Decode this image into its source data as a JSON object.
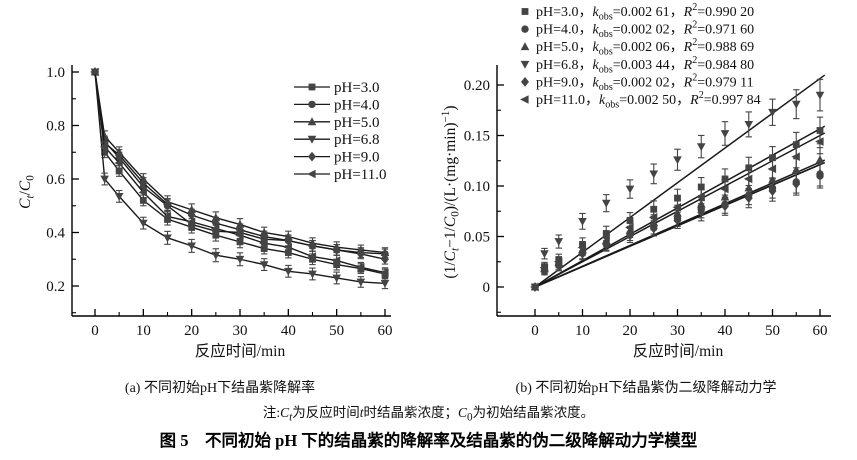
{
  "figure": {
    "caption_a": "(a) 不同初始pH下结晶紫降解率",
    "caption_b": "(b) 不同初始pH下结晶紫伪二级降解动力学",
    "title": "图 5　不同初始 pH 下的结晶紫的降解率及结晶紫的伪二级降解动力学模型",
    "note_rich": [
      {
        "t": "注:"
      },
      {
        "t": "C",
        "i": 1
      },
      {
        "t": "t",
        "i": 1,
        "v": "s"
      },
      {
        "t": "为反应时间"
      },
      {
        "t": "t",
        "i": 1
      },
      {
        "t": "时结晶紫浓度；"
      },
      {
        "t": "C",
        "i": 1
      },
      {
        "t": "0",
        "v": "s"
      },
      {
        "t": "为初始结晶紫浓度。"
      }
    ]
  },
  "colors": {
    "marker": "#444444",
    "line": "#1a1a1a",
    "axis": "#000000",
    "text": "#111111",
    "background": "#ffffff"
  },
  "chart_data": [
    {
      "id": "a",
      "type": "line",
      "title": "(a) 不同初始pH下结晶紫降解率",
      "xlabel": "反应时间/min",
      "ylabel_rich": [
        {
          "t": "C",
          "i": 1
        },
        {
          "t": "t",
          "i": 1,
          "v": "s"
        },
        {
          "t": "/"
        },
        {
          "t": "C",
          "i": 1
        },
        {
          "t": "0",
          "v": "s"
        }
      ],
      "xlim": [
        -5,
        61
      ],
      "ylim": [
        0.09,
        1.03
      ],
      "x_ticks_major": [
        0,
        10,
        20,
        30,
        40,
        50,
        60
      ],
      "x_ticks_minor": [
        5,
        15,
        25,
        35,
        45,
        55
      ],
      "y_ticks_major": [
        [
          0.2,
          "0.2"
        ],
        [
          0.4,
          "0.4"
        ],
        [
          0.6,
          "0.6"
        ],
        [
          0.8,
          "0.8"
        ],
        [
          1.0,
          "1.0"
        ]
      ],
      "y_ticks_minor": [
        0.1,
        0.3,
        0.5,
        0.7,
        0.9
      ],
      "legend_position": "upper right",
      "x": [
        0,
        2,
        5,
        10,
        15,
        20,
        25,
        30,
        35,
        40,
        45,
        50,
        55,
        60
      ],
      "err": [
        0,
        0.02,
        0.02,
        0.02,
        0.022,
        0.022,
        0.022,
        0.022,
        0.02,
        0.02,
        0.02,
        0.02,
        0.018,
        0.018
      ],
      "series": [
        {
          "name": "pH=3.0",
          "marker": "square",
          "err_scale": 1.0,
          "values": [
            1.0,
            0.7,
            0.63,
            0.52,
            0.45,
            0.42,
            0.39,
            0.365,
            0.34,
            0.325,
            0.3,
            0.28,
            0.265,
            0.245
          ]
        },
        {
          "name": "pH=4.0",
          "marker": "circle",
          "err_scale": 1.0,
          "values": [
            1.0,
            0.74,
            0.68,
            0.57,
            0.5,
            0.43,
            0.405,
            0.4,
            0.375,
            0.37,
            0.35,
            0.335,
            0.325,
            0.32
          ]
        },
        {
          "name": "pH=5.0",
          "marker": "triangle-up",
          "err_scale": 1.0,
          "values": [
            1.0,
            0.76,
            0.7,
            0.6,
            0.515,
            0.485,
            0.455,
            0.43,
            0.4,
            0.385,
            0.36,
            0.345,
            0.335,
            0.325
          ]
        },
        {
          "name": "pH=6.8",
          "marker": "triangle-down",
          "err_scale": 1.1,
          "values": [
            1.0,
            0.6,
            0.535,
            0.435,
            0.38,
            0.35,
            0.315,
            0.3,
            0.28,
            0.255,
            0.245,
            0.23,
            0.215,
            0.21
          ]
        },
        {
          "name": "pH=9.0",
          "marker": "diamond",
          "err_scale": 1.0,
          "values": [
            1.0,
            0.735,
            0.69,
            0.585,
            0.505,
            0.465,
            0.435,
            0.41,
            0.385,
            0.37,
            0.35,
            0.335,
            0.32,
            0.3
          ]
        },
        {
          "name": "pH=11.0",
          "marker": "triangle-left",
          "err_scale": 1.0,
          "values": [
            1.0,
            0.72,
            0.66,
            0.55,
            0.46,
            0.44,
            0.415,
            0.39,
            0.36,
            0.345,
            0.31,
            0.295,
            0.27,
            0.25
          ]
        }
      ]
    },
    {
      "id": "b",
      "type": "scatter",
      "title": "(b) 不同初始pH下结晶紫伪二级降解动力学",
      "xlabel": "反应时间/min",
      "ylabel_rich": [
        {
          "t": "(1/"
        },
        {
          "t": "C",
          "i": 1
        },
        {
          "t": "t",
          "i": 1,
          "v": "s"
        },
        {
          "t": "−1/"
        },
        {
          "t": "C",
          "i": 1
        },
        {
          "t": "0",
          "v": "s"
        },
        {
          "t": ")/(L·(mg·min)"
        },
        {
          "t": "−1",
          "v": "p"
        },
        {
          "t": ")"
        }
      ],
      "xlim": [
        -7,
        62
      ],
      "ylim": [
        -0.028,
        0.22
      ],
      "x_ticks_major": [
        0,
        10,
        20,
        30,
        40,
        50,
        60
      ],
      "x_ticks_minor": [
        5,
        15,
        25,
        35,
        45,
        55
      ],
      "y_ticks_major": [
        [
          0,
          "0"
        ],
        [
          0.05,
          "0.05"
        ],
        [
          0.1,
          "0.10"
        ],
        [
          0.15,
          "0.15"
        ],
        [
          0.2,
          "0.20"
        ]
      ],
      "y_ticks_minor": [
        -0.025,
        0.025,
        0.075,
        0.125,
        0.175
      ],
      "legend_position": "top outside-left",
      "x": [
        0,
        2,
        5,
        10,
        15,
        20,
        25,
        30,
        35,
        40,
        45,
        50,
        55,
        60
      ],
      "err": [
        0,
        0.004,
        0.005,
        0.006,
        0.0065,
        0.007,
        0.0075,
        0.008,
        0.0085,
        0.009,
        0.0095,
        0.01,
        0.011,
        0.012
      ],
      "fit_line_x_end": 61,
      "series": [
        {
          "name": "pH=3.0",
          "marker": "square",
          "k": 0.00261,
          "k_label": "0.002 61",
          "r2_label": "0.990 20",
          "err_scale": 1.1,
          "values": [
            0,
            0.02,
            0.027,
            0.042,
            0.053,
            0.066,
            0.077,
            0.088,
            0.099,
            0.107,
            0.118,
            0.128,
            0.141,
            0.155
          ]
        },
        {
          "name": "pH=4.0",
          "marker": "circle",
          "k": 0.00202,
          "k_label": "0.002 02",
          "r2_label": "0.971 60",
          "err_scale": 1.0,
          "values": [
            0,
            0.017,
            0.022,
            0.034,
            0.043,
            0.053,
            0.06,
            0.068,
            0.077,
            0.082,
            0.091,
            0.098,
            0.104,
            0.11
          ]
        },
        {
          "name": "pH=5.0",
          "marker": "triangle-up",
          "k": 0.00206,
          "k_label": "0.002 06",
          "r2_label": "0.988 69",
          "err_scale": 1.0,
          "values": [
            0,
            0.018,
            0.024,
            0.037,
            0.046,
            0.056,
            0.064,
            0.073,
            0.082,
            0.089,
            0.098,
            0.106,
            0.116,
            0.126
          ]
        },
        {
          "name": "pH=6.8",
          "marker": "triangle-down",
          "k": 0.00344,
          "k_label": "0.003 44",
          "r2_label": "0.984 80",
          "err_scale": 1.3,
          "values": [
            0,
            0.033,
            0.045,
            0.065,
            0.083,
            0.097,
            0.112,
            0.126,
            0.139,
            0.152,
            0.161,
            0.173,
            0.181,
            0.19
          ]
        },
        {
          "name": "pH=9.0",
          "marker": "diamond",
          "k": 0.00202,
          "k_label": "0.002 02",
          "r2_label": "0.979 11",
          "err_scale": 1.0,
          "values": [
            0,
            0.016,
            0.021,
            0.033,
            0.042,
            0.051,
            0.058,
            0.066,
            0.074,
            0.08,
            0.088,
            0.095,
            0.102,
            0.112
          ]
        },
        {
          "name": "pH=11.0",
          "marker": "triangle-left",
          "k": 0.0025,
          "k_label": "0.002 50",
          "r2_label": "0.997 84",
          "err_scale": 1.0,
          "values": [
            0,
            0.019,
            0.025,
            0.039,
            0.049,
            0.059,
            0.069,
            0.079,
            0.089,
            0.097,
            0.107,
            0.117,
            0.129,
            0.144
          ]
        }
      ]
    }
  ]
}
